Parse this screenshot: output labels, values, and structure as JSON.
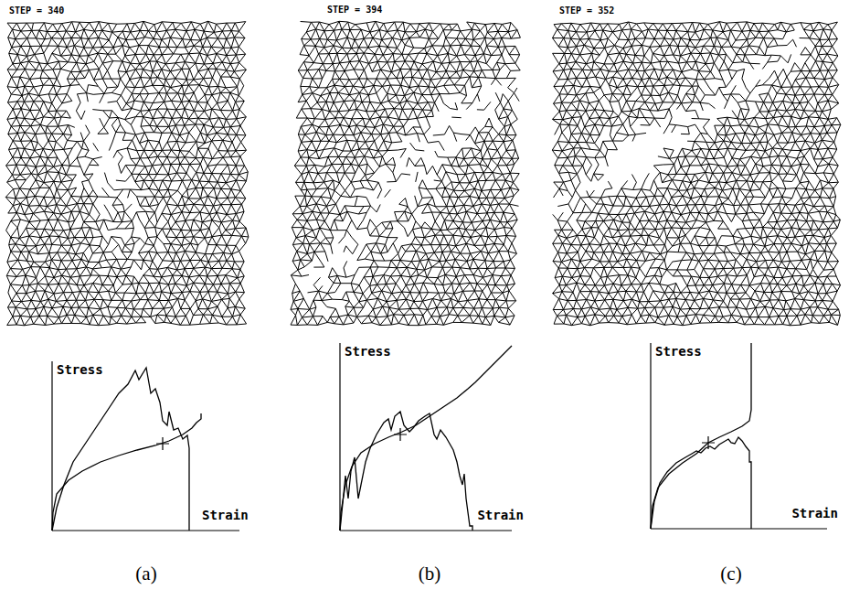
{
  "chart_data": [
    {
      "type": "line",
      "title": "STEP = 340",
      "panel": "(a)",
      "x_label": "Strain",
      "y_label": "Stress",
      "xlim": [
        0,
        205
      ],
      "ylim": [
        0,
        185
      ],
      "tick_labels": false,
      "series": [
        {
          "color": "#000000",
          "line_style": "solid",
          "x": [
            0,
            5,
            13,
            23,
            33,
            43,
            53,
            63,
            73,
            83,
            91,
            95,
            103,
            108,
            113,
            118,
            121,
            126,
            128,
            133,
            138,
            143,
            148,
            150,
            150
          ],
          "values": [
            0,
            25,
            50,
            75,
            90,
            105,
            120,
            135,
            150,
            160,
            175,
            165,
            178,
            150,
            155,
            140,
            120,
            115,
            130,
            110,
            112,
            100,
            104,
            90,
            0
          ]
        },
        {
          "color": "#000000",
          "line_style": "solid",
          "x": [
            0,
            1,
            5,
            18,
            33,
            53,
            73,
            93,
            113,
            128,
            143,
            153,
            158,
            163,
            163
          ],
          "values": [
            0,
            20,
            40,
            55,
            65,
            75,
            82,
            88,
            93,
            98,
            105,
            112,
            118,
            122,
            128
          ]
        },
        {
          "type": "scatter",
          "marker": "cross",
          "color": "#000000",
          "x": [
            121
          ],
          "values": [
            95
          ]
        }
      ]
    },
    {
      "type": "line",
      "title": "STEP = 394",
      "panel": "(b)",
      "x_label": "Strain",
      "y_label": "Stress",
      "xlim": [
        0,
        188
      ],
      "ylim": [
        0,
        205
      ],
      "tick_labels": false,
      "series": [
        {
          "color": "#000000",
          "line_style": "solid",
          "x": [
            0,
            4,
            6,
            9,
            12,
            16,
            20,
            23,
            28,
            33,
            40,
            48,
            53,
            56,
            60,
            66,
            70,
            76,
            80,
            86,
            93,
            98,
            103,
            106,
            110,
            116,
            120,
            124,
            128,
            131,
            134,
            136,
            138,
            142,
            145,
            145
          ],
          "values": [
            0,
            40,
            60,
            35,
            65,
            80,
            35,
            50,
            75,
            90,
            105,
            118,
            122,
            110,
            125,
            130,
            115,
            108,
            112,
            120,
            125,
            128,
            105,
            100,
            110,
            102,
            95,
            88,
            75,
            60,
            50,
            62,
            35,
            5,
            5,
            0
          ]
        },
        {
          "color": "#000000",
          "line_style": "solid",
          "x": [
            0,
            1,
            6,
            13,
            23,
            38,
            53,
            68,
            83,
            98,
            113,
            128,
            140,
            148,
            158,
            168,
            178,
            188
          ],
          "values": [
            0,
            20,
            50,
            70,
            85,
            95,
            102,
            108,
            115,
            125,
            135,
            145,
            155,
            162,
            172,
            182,
            192,
            202
          ]
        },
        {
          "type": "scatter",
          "marker": "cross",
          "color": "#000000",
          "x": [
            66
          ],
          "values": [
            105
          ]
        }
      ]
    },
    {
      "type": "line",
      "title": "STEP = 352",
      "panel": "(c)",
      "x_label": "Strain",
      "y_label": "Stress",
      "xlim": [
        0,
        193
      ],
      "ylim": [
        0,
        203
      ],
      "tick_labels": false,
      "series": [
        {
          "color": "#000000",
          "line_style": "solid",
          "x": [
            0,
            4,
            10,
            18,
            28,
            38,
            45,
            50,
            55,
            60,
            65,
            70,
            75,
            80,
            85,
            88,
            92,
            96,
            100,
            104,
            108,
            108,
            110,
            110
          ],
          "values": [
            0,
            30,
            50,
            62,
            72,
            78,
            82,
            85,
            83,
            88,
            90,
            87,
            92,
            95,
            98,
            94,
            93,
            100,
            96,
            90,
            85,
            73,
            73,
            0
          ]
        },
        {
          "color": "#000000",
          "line_style": "solid",
          "x": [
            0,
            2,
            8,
            20,
            35,
            50,
            63,
            75,
            88,
            100,
            108,
            110,
            110
          ],
          "values": [
            0,
            25,
            45,
            60,
            72,
            82,
            94,
            100,
            106,
            112,
            118,
            130,
            203
          ]
        },
        {
          "type": "scatter",
          "marker": "cross",
          "color": "#000000",
          "x": [
            63
          ],
          "values": [
            94
          ]
        }
      ]
    }
  ]
}
